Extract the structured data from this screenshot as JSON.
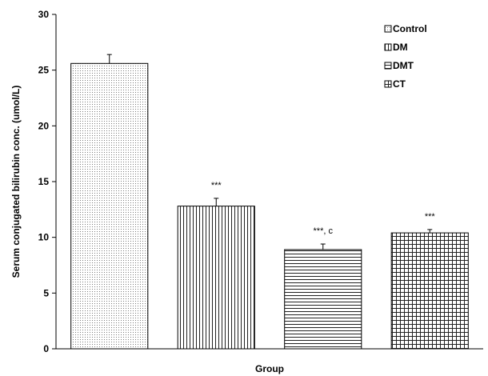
{
  "chart_data": {
    "type": "bar",
    "title": "",
    "xlabel": "Group",
    "ylabel": "Serum conjugated bilirubin conc. (umol/L)",
    "ylim": [
      0,
      30
    ],
    "yticks": [
      0,
      5,
      10,
      15,
      20,
      25,
      30
    ],
    "grid": false,
    "legend_position": "top-right",
    "categories": [
      "Control",
      "DM",
      "DMT",
      "CT"
    ],
    "values": [
      25.6,
      12.8,
      8.9,
      10.4
    ],
    "error_upper": [
      0.8,
      0.7,
      0.5,
      0.3
    ],
    "annotations": [
      "",
      "***",
      "***, c",
      "***"
    ],
    "patterns": [
      "dots",
      "vertical-lines",
      "horizontal-lines",
      "grid"
    ],
    "colors": {
      "bar_fill": "#ffffff",
      "pattern": "#000000",
      "axis": "#000000"
    }
  }
}
